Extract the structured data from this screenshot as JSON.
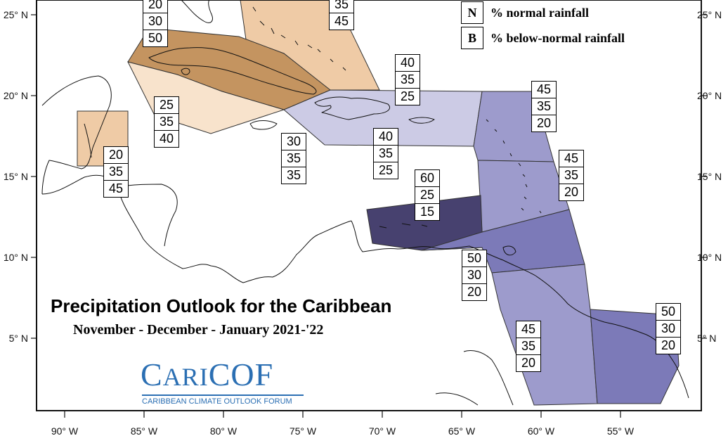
{
  "title": "Precipitation Outlook for the Caribbean",
  "subtitle": "November - December - January  2021-'22",
  "legend": {
    "items": [
      {
        "key": "N",
        "text": "% normal rainfall"
      },
      {
        "key": "B",
        "text": "% below-normal rainfall"
      }
    ]
  },
  "logo": {
    "word_part1": "C",
    "word_part2": "ARI",
    "word_part3": "COF",
    "tagline": "CARIBBEAN CLIMATE OUTLOOK FORUM"
  },
  "axes": {
    "x_ticks": [
      "90° W",
      "85° W",
      "80° W",
      "75° W",
      "70° W",
      "65° W",
      "60° W",
      "55° W"
    ],
    "y_ticks": [
      "25° N",
      "20° N",
      "15° N",
      "10° N",
      "5° N"
    ]
  },
  "colors": {
    "above_brown": "#c49460",
    "light_tan": "#efcba6",
    "very_light_tan": "#f8e3cc",
    "lavender_light": "#cccbe5",
    "lavender_mid": "#9d9bcc",
    "purple_mid": "#7c7ab8",
    "purple_dark": "#47416f"
  },
  "regions": [
    {
      "id": "bahamas",
      "values": [
        "35",
        "45"
      ],
      "color": "light_tan"
    },
    {
      "id": "cuba",
      "values": [
        "20",
        "30",
        "50"
      ],
      "color": "above_brown"
    },
    {
      "id": "cayman-jamaica",
      "values": [
        "25",
        "35",
        "40"
      ],
      "color": "very_light_tan"
    },
    {
      "id": "belize",
      "values": [
        "20",
        "35",
        "45"
      ],
      "color": "light_tan"
    },
    {
      "id": "jamaica-sea",
      "values": [
        "30",
        "35",
        "35"
      ],
      "color": "none"
    },
    {
      "id": "hispaniola-pr",
      "values": [
        "40",
        "35",
        "25"
      ],
      "color": "lavender_light"
    },
    {
      "id": "hispaniola-south",
      "values": [
        "40",
        "35",
        "25"
      ],
      "color": "lavender_light"
    },
    {
      "id": "leeward-islands",
      "values": [
        "45",
        "35",
        "20"
      ],
      "color": "lavender_mid"
    },
    {
      "id": "windward-islands",
      "values": [
        "45",
        "35",
        "20"
      ],
      "color": "lavender_mid"
    },
    {
      "id": "abc-islands",
      "values": [
        "60",
        "25",
        "15"
      ],
      "color": "purple_dark"
    },
    {
      "id": "trinidad",
      "values": [
        "50",
        "30",
        "20"
      ],
      "color": "purple_mid"
    },
    {
      "id": "guyana",
      "values": [
        "45",
        "35",
        "20"
      ],
      "color": "lavender_mid"
    },
    {
      "id": "suriname-guiana",
      "values": [
        "50",
        "30",
        "20"
      ],
      "color": "purple_mid"
    }
  ]
}
